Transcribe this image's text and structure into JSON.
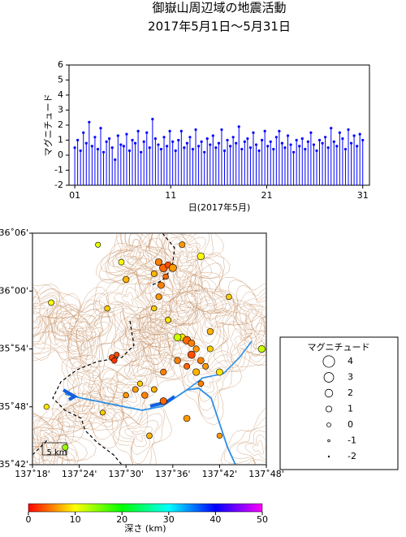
{
  "chart_data": [
    {
      "type": "stem",
      "title": [
        "御嶽山周辺域の地震活動",
        "2017年5月1日～5月31日"
      ],
      "ylabel": "マグニチュード",
      "xlabel": "日(2017年5月)",
      "color": "#0000ff",
      "xlim": [
        0.4,
        31.7
      ],
      "ylim": [
        -2,
        6
      ],
      "xticks": [
        {
          "value": 1,
          "label": "01"
        },
        11,
        21,
        31
      ],
      "yticks": [
        -2,
        -1,
        0,
        1,
        2,
        3,
        4,
        5,
        6
      ],
      "x": [
        1.0,
        1.3,
        1.6,
        1.9,
        2.2,
        2.5,
        2.8,
        3.1,
        3.4,
        3.7,
        4.0,
        4.3,
        4.6,
        4.9,
        5.2,
        5.5,
        5.8,
        6.1,
        6.4,
        6.7,
        7.0,
        7.3,
        7.6,
        7.9,
        8.2,
        8.5,
        8.8,
        9.1,
        9.4,
        9.7,
        10.0,
        10.3,
        10.6,
        10.9,
        11.2,
        11.5,
        11.8,
        12.1,
        12.4,
        12.7,
        13.0,
        13.3,
        13.6,
        13.9,
        14.2,
        14.5,
        14.8,
        15.1,
        15.4,
        15.7,
        16.0,
        16.3,
        16.6,
        16.9,
        17.2,
        17.5,
        17.8,
        18.1,
        18.4,
        18.7,
        19.0,
        19.3,
        19.6,
        19.9,
        20.2,
        20.5,
        20.8,
        21.1,
        21.4,
        21.7,
        22.0,
        22.3,
        22.6,
        22.9,
        23.2,
        23.5,
        23.8,
        24.1,
        24.4,
        24.7,
        25.0,
        25.3,
        25.6,
        25.9,
        26.2,
        26.5,
        26.8,
        27.1,
        27.4,
        27.7,
        28.0,
        28.3,
        28.6,
        28.9,
        29.2,
        29.5,
        29.8,
        30.1,
        30.4,
        30.7,
        31.0
      ],
      "values": [
        0.5,
        1.0,
        0.3,
        1.5,
        0.8,
        2.2,
        0.6,
        1.2,
        0.4,
        1.8,
        0.2,
        0.9,
        1.1,
        0.5,
        -0.3,
        1.3,
        0.7,
        0.6,
        1.4,
        0.3,
        1.0,
        0.8,
        1.6,
        0.2,
        0.9,
        1.5,
        0.5,
        2.4,
        1.1,
        0.7,
        0.4,
        1.2,
        0.6,
        1.6,
        0.9,
        0.3,
        1.0,
        1.6,
        0.5,
        0.8,
        1.2,
        0.4,
        1.7,
        0.6,
        0.9,
        0.2,
        1.1,
        0.7,
        1.3,
        0.5,
        0.8,
        1.7,
        0.3,
        1.0,
        0.6,
        1.2,
        0.8,
        1.9,
        0.4,
        0.9,
        1.1,
        0.5,
        1.5,
        0.7,
        0.3,
        1.0,
        1.6,
        0.6,
        0.9,
        0.4,
        1.2,
        1.6,
        0.8,
        0.5,
        1.3,
        0.7,
        0.2,
        1.0,
        0.6,
        1.1,
        0.4,
        0.9,
        1.5,
        0.7,
        0.3,
        1.0,
        0.8,
        1.2,
        0.5,
        1.8,
        0.9,
        0.6,
        1.5,
        1.1,
        0.4,
        1.7,
        0.8,
        1.3,
        0.6,
        1.4,
        1.0
      ]
    },
    {
      "type": "map",
      "xlim": [
        137.3,
        137.8
      ],
      "ylim": [
        35.7,
        36.1
      ],
      "xticks": [
        {
          "value": 137.3,
          "label": "137˚18'"
        },
        {
          "value": 137.4,
          "label": "137˚24'"
        },
        {
          "value": 137.5,
          "label": "137˚30'"
        },
        {
          "value": 137.6,
          "label": "137˚36'"
        },
        {
          "value": 137.7,
          "label": "137˚42'"
        },
        {
          "value": 137.8,
          "label": "137˚48'"
        }
      ],
      "yticks": [
        {
          "value": 35.7,
          "label": "35˚42'"
        },
        {
          "value": 35.8,
          "label": "35˚48'"
        },
        {
          "value": 35.9,
          "label": "35˚54'"
        },
        {
          "value": 36.0,
          "label": "36˚00'"
        },
        {
          "value": 36.1,
          "label": "36˚06'"
        }
      ],
      "scale_label": "5 km",
      "lon": [
        137.57,
        137.58,
        137.59,
        137.6,
        137.56,
        137.585,
        137.575,
        137.57,
        137.56,
        137.62,
        137.63,
        137.64,
        137.65,
        137.64,
        137.66,
        137.63,
        137.65,
        137.67,
        137.61,
        137.68,
        137.7,
        137.66,
        137.47,
        137.475,
        137.48,
        137.52,
        137.54,
        137.56,
        137.58,
        137.53,
        137.5,
        137.34,
        137.33,
        137.5,
        137.44,
        137.62,
        137.66,
        137.72,
        137.79,
        137.63,
        137.55,
        137.37,
        137.46,
        137.68,
        137.59,
        137.7,
        137.45,
        137.61,
        137.58,
        137.49
      ],
      "lat": [
        36.05,
        36.04,
        36.045,
        36.04,
        36.03,
        36.025,
        36.01,
        35.99,
        35.97,
        35.92,
        35.915,
        35.91,
        35.9,
        35.89,
        35.88,
        35.87,
        35.86,
        35.87,
        35.88,
        35.9,
        35.86,
        35.84,
        35.885,
        35.88,
        35.89,
        35.83,
        35.82,
        35.83,
        35.81,
        35.84,
        35.82,
        35.98,
        35.8,
        36.02,
        36.08,
        36.08,
        36.06,
        35.99,
        35.9,
        35.78,
        35.75,
        35.73,
        35.97,
        35.93,
        35.95,
        35.75,
        35.79,
        35.92,
        35.86,
        36.05
      ],
      "magnitude": [
        1.5,
        2.0,
        1.2,
        1.8,
        1.0,
        0.8,
        1.3,
        1.0,
        0.7,
        1.6,
        2.0,
        1.4,
        1.1,
        1.8,
        1.3,
        1.0,
        1.5,
        0.9,
        1.2,
        1.0,
        1.4,
        0.8,
        1.0,
        0.8,
        0.6,
        1.0,
        1.2,
        0.9,
        1.5,
        0.7,
        0.8,
        0.9,
        0.7,
        1.2,
        0.6,
        1.0,
        1.6,
        0.8,
        1.5,
        1.3,
        0.9,
        1.0,
        0.8,
        1.2,
        0.9,
        0.7,
        0.6,
        1.7,
        1.1,
        0.9
      ],
      "depth": [
        5,
        4,
        3,
        6,
        7,
        4,
        5,
        6,
        8,
        9,
        4,
        5,
        6,
        3,
        5,
        4,
        7,
        6,
        5,
        8,
        9,
        5,
        3,
        2,
        3,
        6,
        5,
        7,
        4,
        8,
        6,
        10,
        9,
        7,
        11,
        6,
        10,
        8,
        12,
        6,
        7,
        14,
        8,
        7,
        9,
        6,
        8,
        12,
        5,
        10
      ],
      "legend_title": "マグニチュード",
      "legend_magnitudes": [
        4,
        3,
        2,
        1,
        0,
        -1,
        -2
      ],
      "colorbar_label": "深さ (km)",
      "clim": [
        0,
        50
      ],
      "cticks": [
        0,
        10,
        20,
        30,
        40,
        50
      ],
      "colormap": [
        "#ff0000",
        "#ffff00",
        "#00ff00",
        "#00ffff",
        "#0000ff",
        "#ff00ff"
      ]
    }
  ]
}
